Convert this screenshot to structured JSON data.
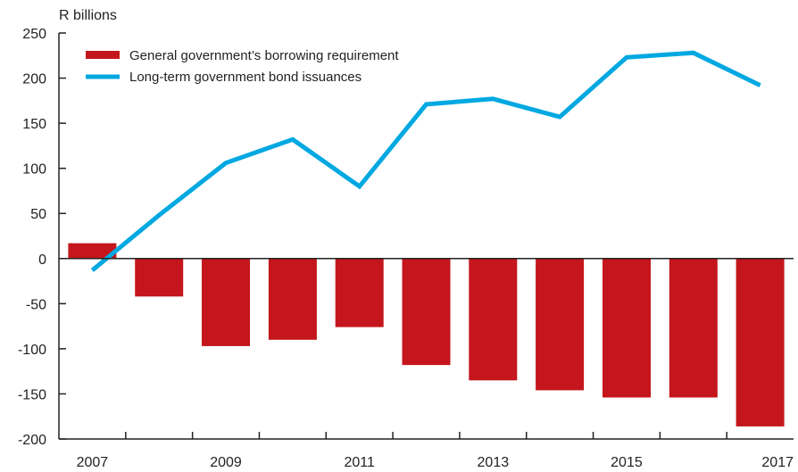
{
  "chart_data": {
    "type": "bar",
    "title": "",
    "unit_label": "R billions",
    "xlabel": "",
    "ylabel": "",
    "ylim": [
      -200,
      250
    ],
    "yticks": [
      250,
      200,
      150,
      100,
      50,
      0,
      -50,
      -100,
      -150,
      -200
    ],
    "categories": [
      "2007",
      "2008",
      "2009",
      "2010",
      "2011",
      "2012",
      "2013",
      "2014",
      "2015",
      "2016",
      "2017"
    ],
    "x_tick_labels": [
      "2007",
      "2009",
      "2011",
      "2013",
      "2015",
      "2017"
    ],
    "grid": false,
    "legend_position": "top-left",
    "series": [
      {
        "name": "General government’s borrowing requirement",
        "type": "bar",
        "color": "#c4161c",
        "values": [
          17,
          -42,
          -97,
          -90,
          -76,
          -118,
          -135,
          -146,
          -154,
          -154,
          -186
        ]
      },
      {
        "name": "Long-term government bond issuances",
        "type": "line",
        "color": "#00a8e1",
        "values": [
          -13,
          48,
          106,
          132,
          80,
          171,
          177,
          157,
          223,
          228,
          192
        ]
      }
    ]
  }
}
